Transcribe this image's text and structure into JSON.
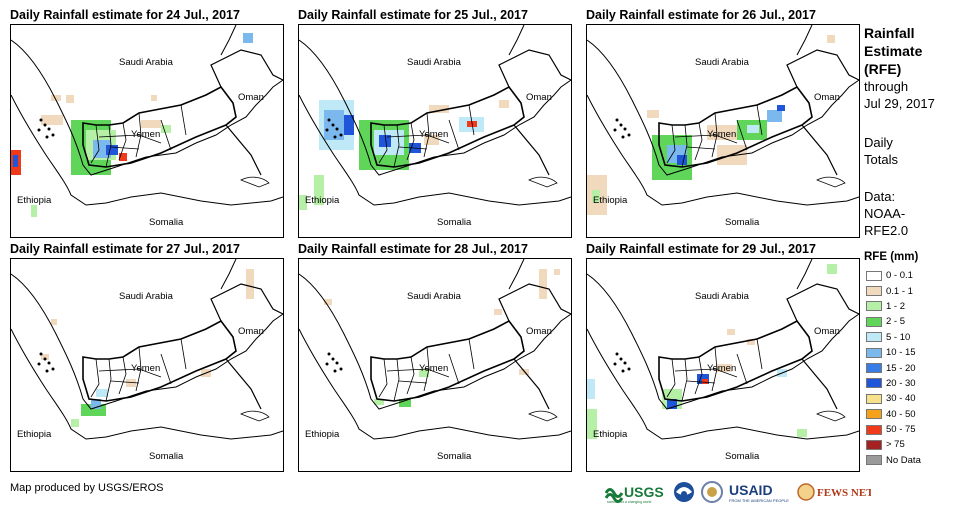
{
  "panels": [
    {
      "title": "Daily Rainfall estimate for 24 Jul., 2017",
      "day": 24
    },
    {
      "title": "Daily Rainfall estimate for 25 Jul., 2017",
      "day": 25
    },
    {
      "title": "Daily Rainfall estimate for 26 Jul., 2017",
      "day": 26
    },
    {
      "title": "Daily Rainfall estimate for 27 Jul., 2017",
      "day": 27
    },
    {
      "title": "Daily Rainfall estimate for 28 Jul., 2017",
      "day": 28
    },
    {
      "title": "Daily Rainfall estimate for 29 Jul., 2017",
      "day": 29
    }
  ],
  "map_labels": {
    "saudi": "Saudi Arabia",
    "oman": "Oman",
    "yemen": "Yemen",
    "ethiopia": "Ethiopia",
    "somalia": "Somalia"
  },
  "sidebar": {
    "title_line1": "Rainfall",
    "title_line2": "Estimate",
    "title_line3": "(RFE)",
    "through": "through",
    "date": "Jul 29, 2017",
    "daily_line1": "Daily",
    "daily_line2": "Totals",
    "data_label": "Data:",
    "data_source1": "NOAA-",
    "data_source2": "RFE2.0"
  },
  "legend": {
    "title": "RFE (mm)",
    "items": [
      {
        "label": "0 - 0.1",
        "color": "#ffffff"
      },
      {
        "label": "0.1 - 1",
        "color": "#f0d9bc"
      },
      {
        "label": "1 - 2",
        "color": "#b6f0a6"
      },
      {
        "label": "2 - 5",
        "color": "#5fd65a"
      },
      {
        "label": "5 - 10",
        "color": "#bfe9f6"
      },
      {
        "label": "10 - 15",
        "color": "#7ab8ee"
      },
      {
        "label": "15 - 20",
        "color": "#3a7ce6"
      },
      {
        "label": "20 - 30",
        "color": "#1f55d8"
      },
      {
        "label": "30 - 40",
        "color": "#f6e28a"
      },
      {
        "label": "40 - 50",
        "color": "#f5a11a"
      },
      {
        "label": "50 - 75",
        "color": "#f03a1a"
      },
      {
        "label": "> 75",
        "color": "#a52222"
      },
      {
        "label": "No Data",
        "color": "#9a9a9a"
      }
    ]
  },
  "credit": "Map produced by USGS/EROS",
  "logos": {
    "usgs": "USGS",
    "usgs_tagline": "science for a changing world",
    "usaid": "USAID",
    "usaid_tagline": "FROM THE AMERICAN PEOPLE",
    "fews": "FEWS NET"
  }
}
